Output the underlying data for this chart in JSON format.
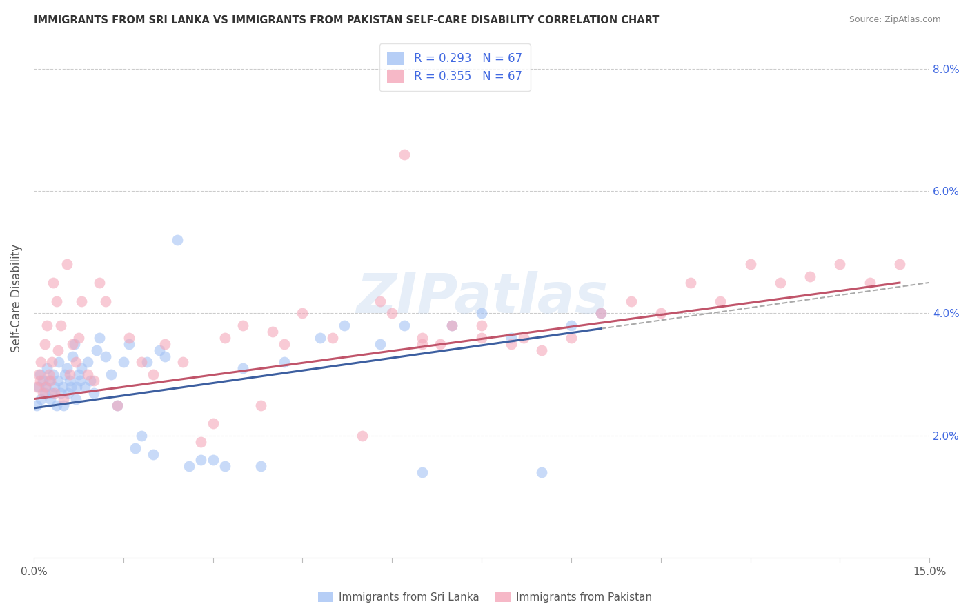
{
  "title": "IMMIGRANTS FROM SRI LANKA VS IMMIGRANTS FROM PAKISTAN SELF-CARE DISABILITY CORRELATION CHART",
  "source": "Source: ZipAtlas.com",
  "ylabel": "Self-Care Disability",
  "sri_lanka_color": "#a4c2f4",
  "pakistan_color": "#f4a7b9",
  "sri_lanka_line_color": "#3d5fa0",
  "pakistan_line_color": "#c0546a",
  "dashed_line_color": "#aaaaaa",
  "legend_r_sri": "R = 0.293",
  "legend_n_sri": "N = 67",
  "legend_r_pak": "R = 0.355",
  "legend_n_pak": "N = 67",
  "legend_text_color": "#4169e1",
  "sri_lanka_label": "Immigrants from Sri Lanka",
  "pakistan_label": "Immigrants from Pakistan",
  "watermark": "ZIPatlas",
  "xlim": [
    0.0,
    15.0
  ],
  "ylim": [
    0.0,
    8.5
  ],
  "ytick_vals": [
    2.0,
    4.0,
    6.0,
    8.0
  ],
  "xtick_vals": [
    0.0,
    1.5,
    3.0,
    4.5,
    6.0,
    7.5,
    9.0,
    10.5,
    12.0,
    13.5,
    15.0
  ],
  "sri_lanka_x": [
    0.05,
    0.08,
    0.1,
    0.12,
    0.15,
    0.18,
    0.2,
    0.22,
    0.25,
    0.28,
    0.3,
    0.32,
    0.35,
    0.38,
    0.4,
    0.42,
    0.45,
    0.48,
    0.5,
    0.52,
    0.55,
    0.58,
    0.6,
    0.62,
    0.65,
    0.68,
    0.7,
    0.72,
    0.75,
    0.78,
    0.8,
    0.85,
    0.9,
    0.95,
    1.0,
    1.05,
    1.1,
    1.2,
    1.3,
    1.4,
    1.5,
    1.6,
    1.7,
    1.8,
    1.9,
    2.0,
    2.1,
    2.2,
    2.4,
    2.6,
    2.8,
    3.0,
    3.2,
    3.5,
    3.8,
    4.2,
    4.8,
    5.2,
    5.8,
    6.2,
    6.5,
    7.0,
    7.5,
    8.0,
    8.5,
    9.0,
    9.5
  ],
  "sri_lanka_y": [
    2.5,
    2.8,
    3.0,
    2.6,
    2.9,
    2.7,
    2.8,
    3.1,
    2.9,
    2.6,
    2.7,
    3.0,
    2.8,
    2.5,
    2.9,
    3.2,
    2.7,
    2.8,
    2.5,
    3.0,
    3.1,
    2.7,
    2.9,
    2.8,
    3.3,
    3.5,
    2.6,
    2.8,
    3.0,
    2.9,
    3.1,
    2.8,
    3.2,
    2.9,
    2.7,
    3.4,
    3.6,
    3.3,
    3.0,
    2.5,
    3.2,
    3.5,
    1.8,
    2.0,
    3.2,
    1.7,
    3.4,
    3.3,
    5.2,
    1.5,
    1.6,
    1.6,
    1.5,
    3.1,
    1.5,
    3.2,
    3.6,
    3.8,
    3.5,
    3.8,
    1.4,
    3.8,
    4.0,
    3.6,
    1.4,
    3.8,
    4.0
  ],
  "pakistan_x": [
    0.05,
    0.08,
    0.1,
    0.12,
    0.15,
    0.18,
    0.2,
    0.22,
    0.25,
    0.28,
    0.3,
    0.32,
    0.35,
    0.38,
    0.4,
    0.45,
    0.5,
    0.55,
    0.6,
    0.65,
    0.7,
    0.75,
    0.8,
    0.9,
    1.0,
    1.1,
    1.2,
    1.4,
    1.6,
    1.8,
    2.0,
    2.2,
    2.5,
    2.8,
    3.0,
    3.2,
    3.5,
    3.8,
    4.0,
    4.2,
    4.5,
    5.0,
    5.5,
    5.8,
    6.0,
    6.5,
    6.8,
    7.0,
    7.5,
    8.0,
    8.5,
    9.0,
    9.5,
    10.0,
    10.5,
    11.0,
    11.5,
    12.0,
    12.5,
    13.0,
    13.5,
    14.0,
    14.5,
    6.5,
    7.5,
    8.2,
    6.2
  ],
  "pakistan_y": [
    2.8,
    3.0,
    2.9,
    3.2,
    2.7,
    3.5,
    2.8,
    3.8,
    3.0,
    2.9,
    3.2,
    4.5,
    2.7,
    4.2,
    3.4,
    3.8,
    2.6,
    4.8,
    3.0,
    3.5,
    3.2,
    3.6,
    4.2,
    3.0,
    2.9,
    4.5,
    4.2,
    2.5,
    3.6,
    3.2,
    3.0,
    3.5,
    3.2,
    1.9,
    2.2,
    3.6,
    3.8,
    2.5,
    3.7,
    3.5,
    4.0,
    3.6,
    2.0,
    4.2,
    4.0,
    3.6,
    3.5,
    3.8,
    3.8,
    3.5,
    3.4,
    3.6,
    4.0,
    4.2,
    4.0,
    4.5,
    4.2,
    4.8,
    4.5,
    4.6,
    4.8,
    4.5,
    4.8,
    3.5,
    3.6,
    3.6,
    6.6
  ],
  "sri_lanka_line_x_start": 0.0,
  "sri_lanka_line_x_end": 9.5,
  "sri_lanka_line_y_start": 2.45,
  "sri_lanka_line_y_end": 3.75,
  "pakistan_line_x_start": 0.0,
  "pakistan_line_x_end": 14.5,
  "pakistan_line_y_start": 2.6,
  "pakistan_line_y_end": 4.5
}
